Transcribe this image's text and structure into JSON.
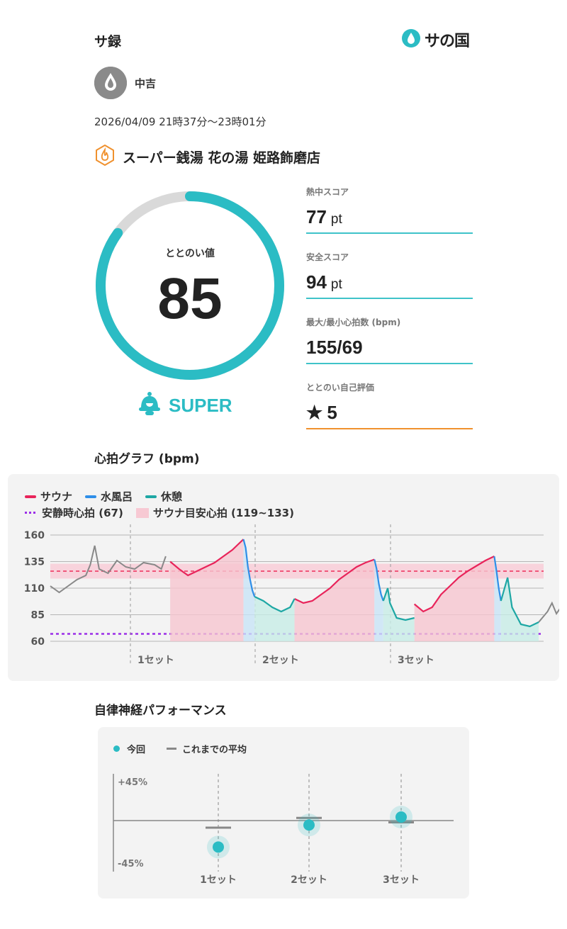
{
  "header": {
    "title": "サ録",
    "logo_text": "サの国",
    "logo_icon": "drop-icon"
  },
  "user": {
    "name": "中吉",
    "avatar_icon": "drop-icon"
  },
  "session": {
    "datetime": "2026/04/09 21時37分〜23時01分",
    "facility": "スーパー銭湯 花の湯 姫路飾磨店",
    "facility_icon": "sauna-icon"
  },
  "totonoi": {
    "label": "ととのい値",
    "value": "85",
    "score": 85,
    "max": 100,
    "rank": "SUPER",
    "rank_icon": "bell-icon"
  },
  "stats": [
    {
      "label": "熱中スコア",
      "value": "77",
      "unit": "pt"
    },
    {
      "label": "安全スコア",
      "value": "94",
      "unit": "pt"
    },
    {
      "label": "最大/最小心拍数 (bpm)",
      "value": "155/69",
      "unit": ""
    },
    {
      "label": "ととのい自己評価",
      "value": "5",
      "unit": "",
      "icon": "star-icon"
    }
  ],
  "heart": {
    "title": "心拍グラフ (bpm)",
    "legend": [
      {
        "label": "サウナ",
        "color": "#e8245a"
      },
      {
        "label": "水風呂",
        "color": "#2e8ee8"
      },
      {
        "label": "休憩",
        "color": "#1ea7a4"
      }
    ],
    "rest_label": "安静時心拍 (67)",
    "target_label": "サウナ目安心拍 (119~133)",
    "y_ticks": [
      "160",
      "135",
      "110",
      "85",
      "60"
    ],
    "set_labels": [
      "1セット",
      "2セット",
      "3セット"
    ]
  },
  "chart_data": {
    "type": "line",
    "title": "心拍グラフ (bpm)",
    "ylim": [
      60,
      160
    ],
    "y_ticks": [
      160,
      135,
      110,
      85,
      60
    ],
    "rest_hr": 67,
    "target_range": [
      119,
      133
    ],
    "series": [
      {
        "name": "サウナ",
        "color": "#e8245a",
        "segments": [
          [
            [
              0.27,
              135
            ],
            [
              0.29,
              128
            ],
            [
              0.31,
              122
            ],
            [
              0.33,
              126
            ],
            [
              0.35,
              130
            ],
            [
              0.37,
              134
            ],
            [
              0.39,
              140
            ],
            [
              0.41,
              146
            ],
            [
              0.42,
              150
            ],
            [
              0.435,
              156
            ]
          ],
          [
            [
              0.55,
              100
            ],
            [
              0.57,
              96
            ],
            [
              0.59,
              98
            ],
            [
              0.61,
              104
            ],
            [
              0.63,
              110
            ],
            [
              0.65,
              118
            ],
            [
              0.67,
              124
            ],
            [
              0.69,
              130
            ],
            [
              0.71,
              134
            ],
            [
              0.73,
              137
            ]
          ],
          [
            [
              0.82,
              95
            ],
            [
              0.84,
              88
            ],
            [
              0.86,
              92
            ],
            [
              0.88,
              104
            ],
            [
              0.9,
              112
            ],
            [
              0.92,
              120
            ],
            [
              0.94,
              126
            ],
            [
              0.96,
              131
            ],
            [
              0.98,
              136
            ],
            [
              1.0,
              140
            ]
          ]
        ]
      },
      {
        "name": "水風呂",
        "color": "#2e8ee8",
        "segments": [
          [
            [
              0.435,
              156
            ],
            [
              0.44,
              148
            ],
            [
              0.445,
              130
            ],
            [
              0.45,
              118
            ],
            [
              0.455,
              108
            ],
            [
              0.46,
              102
            ]
          ],
          [
            [
              0.73,
              137
            ],
            [
              0.735,
              128
            ],
            [
              0.74,
              114
            ],
            [
              0.745,
              104
            ],
            [
              0.75,
              98
            ]
          ],
          [
            [
              1.0,
              140
            ],
            [
              1.005,
              126
            ],
            [
              1.01,
              110
            ],
            [
              1.015,
              98
            ]
          ]
        ]
      },
      {
        "name": "休憩",
        "color": "#1ea7a4",
        "segments": [
          [
            [
              0.46,
              102
            ],
            [
              0.48,
              98
            ],
            [
              0.5,
              92
            ],
            [
              0.52,
              88
            ],
            [
              0.54,
              92
            ],
            [
              0.55,
              100
            ]
          ],
          [
            [
              0.75,
              98
            ],
            [
              0.76,
              110
            ],
            [
              0.765,
              96
            ],
            [
              0.78,
              82
            ],
            [
              0.8,
              80
            ],
            [
              0.82,
              82
            ]
          ],
          [
            [
              1.015,
              98
            ],
            [
              1.03,
              120
            ],
            [
              1.04,
              92
            ],
            [
              1.06,
              76
            ],
            [
              1.08,
              74
            ],
            [
              1.1,
              78
            ]
          ]
        ]
      }
    ],
    "series_note": "x in relative session time"
  },
  "ans": {
    "title": "自律神経パフォーマンス",
    "legend_current": "今回",
    "legend_avg": "これまでの平均",
    "y_top": "+45%",
    "y_bottom": "-45%",
    "ylim": [
      -45,
      45
    ],
    "sets": [
      {
        "label": "1セット",
        "current": -30,
        "avg": -8
      },
      {
        "label": "2セット",
        "current": -5,
        "avg": 3
      },
      {
        "label": "3セット",
        "current": 4,
        "avg": -2
      }
    ],
    "color_current": "#2bbcc4",
    "color_avg": "#888888"
  }
}
